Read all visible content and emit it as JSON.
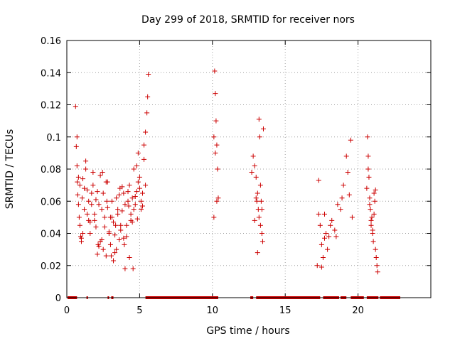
{
  "chart_data": {
    "type": "scatter",
    "title": "Day 299 of 2018, SRMTID for receiver nors",
    "xlabel": "GPS time / hours",
    "ylabel": "SRMTID / TECUs",
    "xlim": [
      0,
      25
    ],
    "ylim": [
      0,
      0.16
    ],
    "xticks": [
      0,
      5,
      10,
      15,
      20
    ],
    "xtick_labels": [
      "0",
      "5",
      "10",
      "15",
      "20"
    ],
    "yticks": [
      0,
      0.02,
      0.04,
      0.06,
      0.08,
      0.1,
      0.12,
      0.14,
      0.16
    ],
    "ytick_labels": [
      "0",
      "0.02",
      "0.04",
      "0.06",
      "0.08",
      "0.1",
      "0.12",
      "0.14",
      "0.16"
    ],
    "grid": true,
    "marker": "+",
    "color": "#cc0000",
    "series": [
      {
        "name": "SRMTID",
        "x": [
          0.6,
          0.65,
          0.7,
          0.72,
          0.75,
          0.8,
          0.85,
          0.9,
          0.95,
          1.0,
          1.05,
          1.1,
          1.2,
          1.3,
          1.4,
          1.5,
          1.6,
          1.7,
          1.8,
          1.9,
          2.0,
          2.1,
          2.2,
          2.3,
          2.4,
          2.5,
          2.6,
          2.7,
          2.8,
          2.9,
          3.0,
          3.1,
          3.2,
          3.3,
          3.4,
          3.5,
          3.6,
          3.7,
          3.8,
          3.9,
          4.0,
          4.1,
          4.2,
          4.3,
          4.4,
          4.5,
          4.6,
          4.7,
          4.8,
          4.9,
          5.0,
          5.1,
          5.2,
          5.3,
          5.4,
          5.5,
          5.55,
          5.6,
          0.7,
          0.9,
          1.1,
          1.3,
          1.5,
          1.7,
          1.9,
          2.1,
          2.3,
          2.5,
          2.7,
          2.9,
          3.1,
          3.3,
          3.5,
          3.7,
          3.9,
          4.1,
          4.3,
          4.5,
          4.7,
          4.9,
          5.1,
          5.3,
          0.8,
          1.0,
          1.2,
          1.4,
          1.6,
          1.8,
          2.0,
          2.2,
          2.4,
          2.6,
          2.8,
          3.0,
          3.2,
          3.4,
          3.6,
          3.8,
          4.0,
          4.2,
          4.4,
          4.6,
          4.8,
          5.0,
          5.2,
          5.4,
          2.15,
          2.45,
          2.75,
          3.05,
          3.35,
          3.65,
          3.95,
          4.25,
          4.55,
          4.85,
          10.1,
          10.15,
          10.2,
          10.25,
          10.3,
          10.35,
          10.4,
          10.1,
          10.2,
          10.3,
          12.7,
          12.8,
          12.9,
          13.0,
          13.05,
          13.1,
          13.15,
          13.2,
          13.25,
          13.3,
          13.35,
          13.4,
          13.45,
          13.5,
          13.1,
          13.2,
          13.3,
          13.4,
          12.9,
          13.0,
          17.2,
          17.3,
          17.4,
          17.5,
          17.6,
          17.7,
          17.8,
          17.9,
          18.0,
          18.2,
          18.4,
          18.6,
          18.8,
          19.0,
          19.2,
          19.4,
          19.6,
          17.3,
          17.5,
          17.7,
          18.1,
          18.5,
          18.9,
          19.3,
          19.5,
          20.6,
          20.65,
          20.7,
          20.75,
          20.8,
          20.85,
          20.9,
          20.95,
          21.0,
          21.05,
          21.1,
          21.15,
          21.2,
          21.25,
          21.3,
          21.35,
          20.7,
          20.8,
          20.9,
          21.0,
          21.1,
          21.2
        ],
        "y": [
          0.119,
          0.094,
          0.082,
          0.072,
          0.064,
          0.058,
          0.05,
          0.045,
          0.038,
          0.035,
          0.062,
          0.074,
          0.055,
          0.085,
          0.067,
          0.048,
          0.04,
          0.058,
          0.07,
          0.052,
          0.044,
          0.066,
          0.058,
          0.076,
          0.036,
          0.03,
          0.05,
          0.072,
          0.056,
          0.041,
          0.033,
          0.06,
          0.047,
          0.039,
          0.03,
          0.052,
          0.064,
          0.042,
          0.069,
          0.037,
          0.058,
          0.045,
          0.06,
          0.07,
          0.052,
          0.062,
          0.08,
          0.058,
          0.066,
          0.09,
          0.075,
          0.06,
          0.065,
          0.086,
          0.103,
          0.115,
          0.125,
          0.139,
          0.1,
          0.07,
          0.04,
          0.08,
          0.06,
          0.065,
          0.048,
          0.027,
          0.035,
          0.065,
          0.026,
          0.04,
          0.05,
          0.028,
          0.055,
          0.045,
          0.065,
          0.038,
          0.025,
          0.047,
          0.063,
          0.072,
          0.055,
          0.095,
          0.075,
          0.037,
          0.068,
          0.052,
          0.047,
          0.078,
          0.061,
          0.032,
          0.055,
          0.044,
          0.072,
          0.05,
          0.023,
          0.062,
          0.036,
          0.054,
          0.018,
          0.066,
          0.048,
          0.055,
          0.082,
          0.068,
          0.057,
          0.07,
          0.033,
          0.078,
          0.06,
          0.026,
          0.045,
          0.068,
          0.033,
          0.057,
          0.018,
          0.049,
          0.1,
          0.141,
          0.127,
          0.11,
          0.095,
          0.08,
          0.062,
          0.05,
          0.09,
          0.06,
          0.078,
          0.088,
          0.082,
          0.075,
          0.06,
          0.065,
          0.055,
          0.05,
          0.1,
          0.045,
          0.06,
          0.04,
          0.035,
          0.105,
          0.028,
          0.111,
          0.07,
          0.055,
          0.048,
          0.062,
          0.02,
          0.073,
          0.045,
          0.033,
          0.025,
          0.052,
          0.04,
          0.03,
          0.038,
          0.048,
          0.042,
          0.058,
          0.055,
          0.07,
          0.088,
          0.064,
          0.05,
          0.052,
          0.019,
          0.037,
          0.045,
          0.038,
          0.062,
          0.078,
          0.098,
          0.068,
          0.1,
          0.088,
          0.075,
          0.062,
          0.055,
          0.045,
          0.05,
          0.04,
          0.035,
          0.065,
          0.06,
          0.03,
          0.025,
          0.02,
          0.016,
          0.08,
          0.058,
          0.048,
          0.042,
          0.052,
          0.067
        ],
        "zero_segments_hours": [
          [
            0.05,
            0.7
          ],
          [
            1.35,
            1.45
          ],
          [
            2.8,
            2.9
          ],
          [
            3.05,
            3.2
          ],
          [
            5.4,
            10.4
          ],
          [
            12.6,
            12.8
          ],
          [
            13.0,
            17.4
          ],
          [
            17.6,
            18.7
          ],
          [
            18.8,
            19.2
          ],
          [
            19.5,
            20.4
          ],
          [
            20.6,
            21.4
          ],
          [
            21.5,
            22.9
          ]
        ]
      }
    ]
  }
}
